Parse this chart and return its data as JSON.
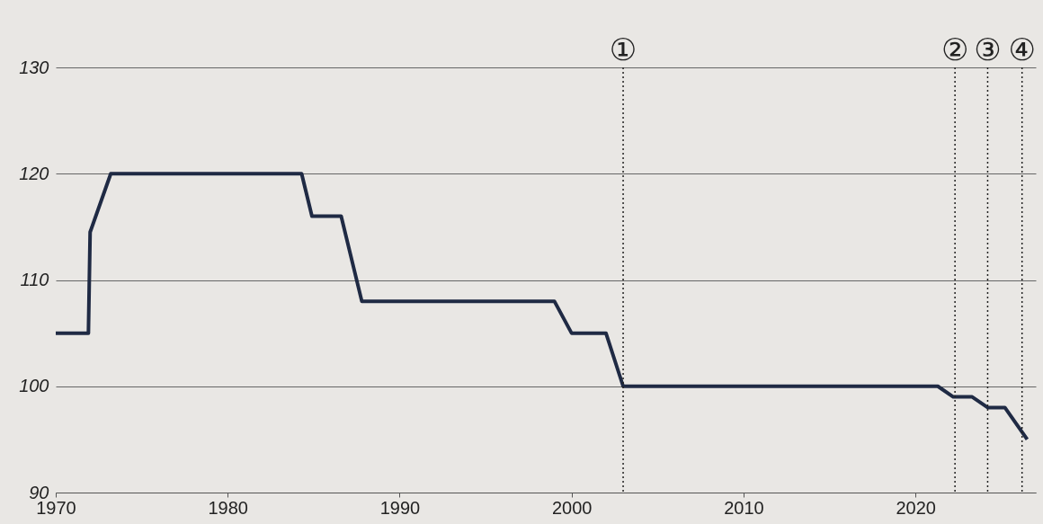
{
  "chart_data": {
    "type": "step",
    "x": [
      1970,
      1971.9,
      1972,
      1973.2,
      1984.3,
      1984.9,
      1986.6,
      1987.8,
      1999,
      2000,
      2002,
      2003,
      2021.3,
      2022.2,
      2023.3,
      2024.2,
      2025.2,
      2026.5
    ],
    "series": [
      {
        "color": "#1f2a44",
        "values": [
          105,
          105,
          114.5,
          120,
          120,
          116,
          116,
          108,
          108,
          105,
          105,
          100,
          100,
          99,
          99,
          98,
          98,
          95
        ]
      }
    ],
    "xlim": [
      1970,
      2027
    ],
    "xticks": [
      1970,
      1980,
      1990,
      2000,
      2010,
      2020
    ],
    "ylim": [
      90,
      130
    ],
    "yticks": [
      90,
      100,
      110,
      120,
      130
    ],
    "grid": "y",
    "marker": "none",
    "line_style": "solid",
    "ref_lines": [
      {
        "axis": "x",
        "value": 2003,
        "label": "①",
        "line_style": "dotted"
      },
      {
        "axis": "x",
        "value": 2022.3,
        "label": "②",
        "line_style": "dotted"
      },
      {
        "axis": "x",
        "value": 2024.2,
        "label": "③",
        "line_style": "dotted"
      },
      {
        "axis": "x",
        "value": 2026.2,
        "label": "④",
        "line_style": "dotted"
      }
    ]
  }
}
